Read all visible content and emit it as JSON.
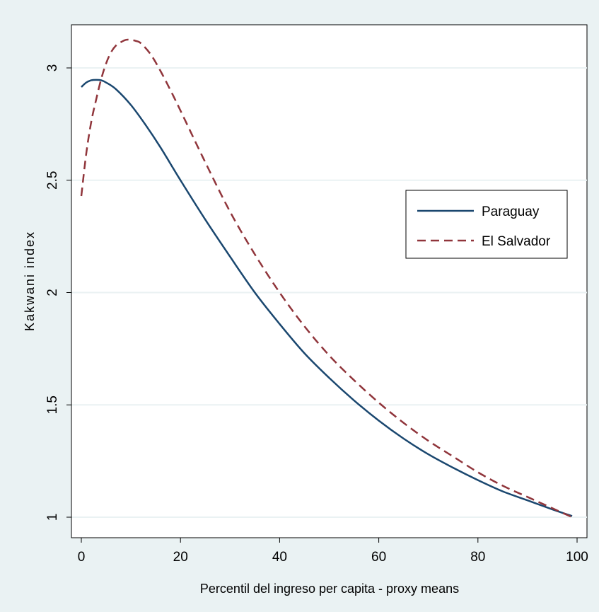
{
  "chart_data": {
    "type": "line",
    "xlabel": "Percentil del ingreso per capita - proxy means",
    "ylabel": "Kakwani index",
    "xlim": [
      0,
      100
    ],
    "ylim": [
      1,
      3
    ],
    "xticks": [
      0,
      20,
      40,
      60,
      80,
      100
    ],
    "yticks": [
      1,
      1.5,
      2,
      2.5,
      3
    ],
    "xtick_labels": [
      "0",
      "20",
      "40",
      "60",
      "80",
      "100"
    ],
    "ytick_labels": [
      "1",
      "1.5",
      "2",
      "2.5",
      "3"
    ],
    "grid": true,
    "legend_position": "right",
    "series": [
      {
        "name": "Paraguay",
        "color": "#1a476f",
        "style": "solid",
        "x": [
          0,
          1,
          2,
          3,
          4,
          5,
          7,
          10,
          13,
          16,
          20,
          25,
          30,
          35,
          40,
          45,
          50,
          55,
          60,
          65,
          70,
          75,
          80,
          85,
          90,
          95,
          99
        ],
        "y": [
          2.915,
          2.935,
          2.945,
          2.947,
          2.945,
          2.935,
          2.905,
          2.835,
          2.745,
          2.645,
          2.5,
          2.325,
          2.16,
          2.0,
          1.86,
          1.73,
          1.62,
          1.52,
          1.43,
          1.35,
          1.28,
          1.22,
          1.165,
          1.115,
          1.075,
          1.035,
          1.005
        ]
      },
      {
        "name": "El Salvador",
        "color": "#90353b",
        "style": "dashed",
        "x": [
          0,
          1,
          2,
          3,
          4,
          5,
          6,
          7,
          8,
          9,
          10,
          11,
          12,
          14,
          16,
          18,
          20,
          25,
          30,
          35,
          40,
          45,
          50,
          55,
          60,
          65,
          70,
          75,
          80,
          85,
          90,
          95,
          99
        ],
        "y": [
          2.43,
          2.62,
          2.76,
          2.86,
          2.95,
          3.02,
          3.07,
          3.1,
          3.115,
          3.125,
          3.125,
          3.12,
          3.11,
          3.06,
          2.985,
          2.9,
          2.81,
          2.58,
          2.36,
          2.17,
          2.0,
          1.85,
          1.72,
          1.61,
          1.51,
          1.42,
          1.34,
          1.27,
          1.2,
          1.14,
          1.09,
          1.04,
          1.0
        ]
      }
    ]
  }
}
